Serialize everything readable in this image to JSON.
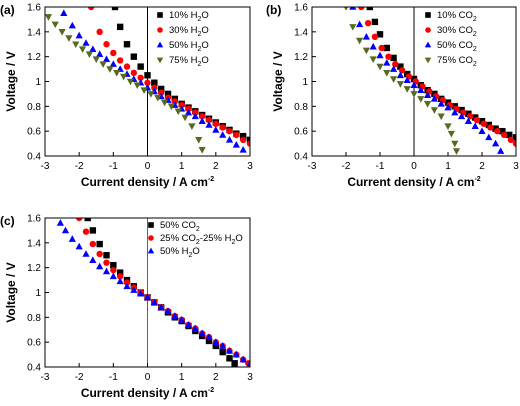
{
  "chart_data": [
    {
      "panel": "(a)",
      "type": "scatter",
      "xlabel": "Current density / A cm-2",
      "ylabel": "Voltage / V",
      "xlim": [
        -3,
        3
      ],
      "ylim": [
        0.4,
        1.6
      ],
      "xticks": [
        -3,
        -2,
        -1,
        0,
        1,
        2,
        3
      ],
      "yticks": [
        0.4,
        0.6,
        0.8,
        1.0,
        1.2,
        1.4,
        1.6
      ],
      "reference_line": {
        "axis": "x",
        "value": 0,
        "color": "#000000"
      },
      "legend_position": "top-right",
      "series": [
        {
          "name": "10% H2O",
          "name_parts": [
            "10% H",
            "2",
            "O"
          ],
          "color": "#000000",
          "marker": "square",
          "x": [
            -0.95,
            -0.8,
            -0.6,
            -0.4,
            -0.2,
            0.0,
            0.2,
            0.4,
            0.6,
            0.8,
            1.0,
            1.2,
            1.4,
            1.6,
            1.8,
            2.0,
            2.2,
            2.4,
            2.6,
            2.8,
            3.0
          ],
          "y": [
            1.6,
            1.44,
            1.3,
            1.2,
            1.12,
            1.05,
            0.99,
            0.94,
            0.9,
            0.86,
            0.82,
            0.79,
            0.76,
            0.73,
            0.7,
            0.67,
            0.64,
            0.61,
            0.58,
            0.56,
            0.53
          ]
        },
        {
          "name": "30% H2O",
          "name_parts": [
            "30% H",
            "2",
            "O"
          ],
          "color": "#ff0000",
          "marker": "circle",
          "x": [
            -1.65,
            -1.4,
            -1.2,
            -1.0,
            -0.8,
            -0.6,
            -0.4,
            -0.2,
            0.0,
            0.2,
            0.4,
            0.6,
            0.8,
            1.0,
            1.2,
            1.4,
            1.6,
            1.8,
            2.0,
            2.2,
            2.4,
            2.6,
            2.8,
            3.0
          ],
          "y": [
            1.6,
            1.4,
            1.3,
            1.23,
            1.17,
            1.12,
            1.07,
            1.03,
            0.99,
            0.95,
            0.91,
            0.87,
            0.84,
            0.81,
            0.78,
            0.75,
            0.72,
            0.69,
            0.66,
            0.63,
            0.6,
            0.57,
            0.53,
            0.5
          ]
        },
        {
          "name": "50% H2O",
          "name_parts": [
            "50% H",
            "2",
            "O"
          ],
          "color": "#0000ff",
          "marker": "triangle-up",
          "x": [
            -2.45,
            -2.2,
            -2.0,
            -1.8,
            -1.6,
            -1.4,
            -1.2,
            -1.0,
            -0.8,
            -0.6,
            -0.4,
            -0.2,
            0.0,
            0.2,
            0.4,
            0.6,
            0.8,
            1.0,
            1.2,
            1.4,
            1.6,
            1.8,
            2.0,
            2.2,
            2.4,
            2.6,
            2.8
          ],
          "y": [
            1.55,
            1.45,
            1.37,
            1.31,
            1.26,
            1.22,
            1.18,
            1.14,
            1.1,
            1.06,
            1.02,
            0.99,
            0.95,
            0.92,
            0.88,
            0.85,
            0.81,
            0.78,
            0.75,
            0.72,
            0.68,
            0.65,
            0.61,
            0.57,
            0.53,
            0.49,
            0.45
          ]
        },
        {
          "name": "75% H2O",
          "name_parts": [
            "75% H",
            "2",
            "O"
          ],
          "color": "#556b1f",
          "marker": "triangle-down",
          "x": [
            -2.9,
            -2.7,
            -2.5,
            -2.3,
            -2.1,
            -1.9,
            -1.7,
            -1.5,
            -1.3,
            -1.1,
            -0.9,
            -0.7,
            -0.5,
            -0.3,
            -0.1,
            0.1,
            0.3,
            0.5,
            0.7,
            0.9,
            1.1,
            1.3,
            1.5,
            1.6
          ],
          "y": [
            1.52,
            1.46,
            1.4,
            1.35,
            1.3,
            1.26,
            1.22,
            1.18,
            1.14,
            1.1,
            1.07,
            1.04,
            1.0,
            0.97,
            0.93,
            0.9,
            0.87,
            0.83,
            0.8,
            0.76,
            0.71,
            0.64,
            0.53,
            0.45
          ]
        }
      ]
    },
    {
      "panel": "(b)",
      "type": "scatter",
      "xlabel": "Current density / A cm-2",
      "ylabel": "Voltage / V",
      "xlim": [
        -3,
        3
      ],
      "ylim": [
        0.4,
        1.6
      ],
      "xticks": [
        -3,
        -2,
        -1,
        0,
        1,
        2,
        3
      ],
      "yticks": [
        0.4,
        0.6,
        0.8,
        1.0,
        1.2,
        1.4,
        1.6
      ],
      "reference_line": {
        "axis": "x",
        "value": 0,
        "color": "#000000"
      },
      "legend_position": "top-right",
      "series": [
        {
          "name": "10% CO2",
          "name_parts": [
            "10% CO",
            "2",
            ""
          ],
          "color": "#000000",
          "marker": "square",
          "x": [
            -1.3,
            -1.15,
            -1.0,
            -0.8,
            -0.6,
            -0.4,
            -0.2,
            0.0,
            0.2,
            0.4,
            0.6,
            0.8,
            1.0,
            1.2,
            1.4,
            1.6,
            1.8,
            2.0,
            2.2,
            2.4,
            2.6,
            2.8,
            3.0
          ],
          "y": [
            1.6,
            1.48,
            1.38,
            1.27,
            1.19,
            1.12,
            1.06,
            1.02,
            0.97,
            0.93,
            0.9,
            0.86,
            0.83,
            0.8,
            0.77,
            0.74,
            0.71,
            0.68,
            0.65,
            0.62,
            0.6,
            0.57,
            0.55
          ]
        },
        {
          "name": "30% CO2",
          "name_parts": [
            "30% CO",
            "2",
            ""
          ],
          "color": "#ff0000",
          "marker": "circle",
          "x": [
            -1.55,
            -1.35,
            -1.15,
            -0.95,
            -0.75,
            -0.55,
            -0.35,
            -0.15,
            0.05,
            0.25,
            0.45,
            0.65,
            0.85,
            1.05,
            1.25,
            1.45,
            1.65,
            1.85,
            2.05,
            2.25,
            2.45,
            2.65,
            2.85,
            3.0
          ],
          "y": [
            1.6,
            1.47,
            1.36,
            1.27,
            1.2,
            1.14,
            1.09,
            1.04,
            1.0,
            0.96,
            0.92,
            0.88,
            0.85,
            0.81,
            0.78,
            0.75,
            0.72,
            0.69,
            0.66,
            0.63,
            0.6,
            0.57,
            0.53,
            0.5
          ]
        },
        {
          "name": "50% CO2",
          "name_parts": [
            "50% CO",
            "2",
            ""
          ],
          "color": "#0000ff",
          "marker": "triangle-up",
          "x": [
            -1.8,
            -1.6,
            -1.4,
            -1.2,
            -1.0,
            -0.8,
            -0.6,
            -0.4,
            -0.2,
            0.0,
            0.2,
            0.4,
            0.6,
            0.8,
            1.0,
            1.2,
            1.4,
            1.6,
            1.8,
            2.0,
            2.2,
            2.4,
            2.55
          ],
          "y": [
            1.6,
            1.46,
            1.36,
            1.28,
            1.21,
            1.15,
            1.1,
            1.05,
            1.01,
            0.97,
            0.93,
            0.89,
            0.86,
            0.82,
            0.79,
            0.75,
            0.72,
            0.68,
            0.64,
            0.6,
            0.55,
            0.5,
            0.44
          ]
        },
        {
          "name": "75% CO2",
          "name_parts": [
            "75% CO",
            "2",
            ""
          ],
          "color": "#556b1f",
          "marker": "triangle-down",
          "x": [
            -2.0,
            -1.8,
            -1.6,
            -1.4,
            -1.2,
            -1.0,
            -0.8,
            -0.6,
            -0.4,
            -0.2,
            0.0,
            0.2,
            0.4,
            0.6,
            0.8,
            1.0,
            1.1,
            1.2,
            1.25
          ],
          "y": [
            1.6,
            1.44,
            1.33,
            1.25,
            1.18,
            1.12,
            1.07,
            1.02,
            0.98,
            0.94,
            0.9,
            0.86,
            0.82,
            0.77,
            0.72,
            0.64,
            0.58,
            0.5,
            0.44
          ]
        }
      ]
    },
    {
      "panel": "(c)",
      "type": "scatter",
      "xlabel": "Current density / A cm-2",
      "ylabel": "Voltage / V",
      "xlim": [
        -3,
        3
      ],
      "ylim": [
        0.4,
        1.6
      ],
      "xticks": [
        -3,
        -2,
        -1,
        0,
        1,
        2,
        3
      ],
      "yticks": [
        0.4,
        0.6,
        0.8,
        1.0,
        1.2,
        1.4,
        1.6
      ],
      "reference_line": {
        "axis": "x",
        "value": 0,
        "color": "#3366cc"
      },
      "legend_position": "top-right",
      "series": [
        {
          "name": "50% CO2",
          "name_parts": [
            "50% CO",
            "2",
            ""
          ],
          "color": "#000000",
          "marker": "square",
          "x": [
            -1.75,
            -1.6,
            -1.4,
            -1.2,
            -1.0,
            -0.8,
            -0.6,
            -0.4,
            -0.2,
            0.0,
            0.2,
            0.4,
            0.6,
            0.8,
            1.0,
            1.2,
            1.4,
            1.6,
            1.8,
            2.0,
            2.2,
            2.4,
            2.55
          ],
          "y": [
            1.6,
            1.5,
            1.39,
            1.3,
            1.22,
            1.16,
            1.1,
            1.05,
            1.0,
            0.96,
            0.92,
            0.88,
            0.84,
            0.8,
            0.77,
            0.73,
            0.69,
            0.65,
            0.61,
            0.57,
            0.52,
            0.47,
            0.43
          ]
        },
        {
          "name": "25% CO2-25% H2O",
          "name_parts": [
            "25% CO",
            "2",
            "-25% H",
            "2",
            "O"
          ],
          "color": "#ff0000",
          "marker": "circle",
          "x": [
            -2.0,
            -1.8,
            -1.6,
            -1.4,
            -1.2,
            -1.0,
            -0.8,
            -0.6,
            -0.4,
            -0.2,
            0.0,
            0.2,
            0.4,
            0.6,
            0.8,
            1.0,
            1.2,
            1.4,
            1.6,
            1.8,
            2.0,
            2.2,
            2.4,
            2.6,
            2.8,
            2.95
          ],
          "y": [
            1.6,
            1.49,
            1.39,
            1.31,
            1.24,
            1.18,
            1.13,
            1.08,
            1.04,
            1.0,
            0.96,
            0.92,
            0.88,
            0.85,
            0.81,
            0.78,
            0.74,
            0.71,
            0.67,
            0.64,
            0.6,
            0.57,
            0.53,
            0.5,
            0.46,
            0.43
          ]
        },
        {
          "name": "50% H2O",
          "name_parts": [
            "50% H",
            "2",
            "O"
          ],
          "color": "#0000ff",
          "marker": "triangle-up",
          "x": [
            -2.55,
            -2.4,
            -2.2,
            -2.0,
            -1.8,
            -1.6,
            -1.4,
            -1.2,
            -1.0,
            -0.8,
            -0.6,
            -0.4,
            -0.2,
            0.0,
            0.2,
            0.4,
            0.6,
            0.8,
            1.0,
            1.2,
            1.4,
            1.6,
            1.8,
            2.0,
            2.2,
            2.4,
            2.6,
            2.8,
            3.0
          ],
          "y": [
            1.56,
            1.5,
            1.43,
            1.37,
            1.31,
            1.26,
            1.21,
            1.17,
            1.13,
            1.09,
            1.05,
            1.02,
            0.99,
            0.96,
            0.92,
            0.88,
            0.85,
            0.81,
            0.78,
            0.74,
            0.71,
            0.67,
            0.64,
            0.6,
            0.57,
            0.53,
            0.5,
            0.46,
            0.43
          ]
        }
      ]
    }
  ]
}
